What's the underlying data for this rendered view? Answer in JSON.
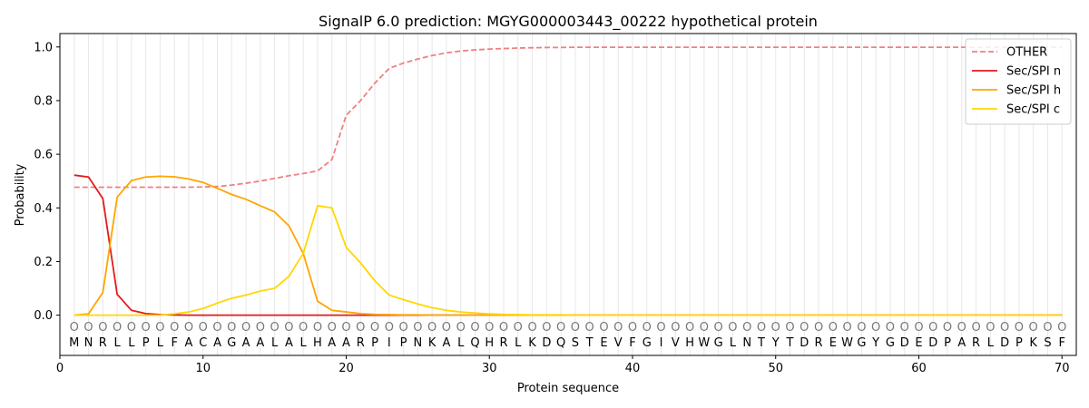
{
  "chart_data": {
    "type": "line",
    "title": "SignalP 6.0 prediction: MGYG000003443_00222 hypothetical protein",
    "xlabel": "Protein sequence",
    "ylabel": "Probability",
    "xlim": [
      0,
      71
    ],
    "ylim": [
      -0.15,
      1.05
    ],
    "x_ticks": [
      0,
      10,
      20,
      30,
      40,
      50,
      60,
      70
    ],
    "y_ticks": [
      "0.0",
      "0.2",
      "0.4",
      "0.6",
      "0.8",
      "1.0"
    ],
    "y_tick_values": [
      0.0,
      0.2,
      0.4,
      0.6,
      0.8,
      1.0
    ],
    "grid": "vertical lines at each residue",
    "legend_position": "top-right",
    "sequence": [
      "M",
      "N",
      "R",
      "L",
      "L",
      "P",
      "L",
      "F",
      "A",
      "C",
      "A",
      "G",
      "A",
      "A",
      "L",
      "A",
      "L",
      "H",
      "A",
      "A",
      "R",
      "P",
      "I",
      "P",
      "N",
      "K",
      "A",
      "L",
      "Q",
      "H",
      "R",
      "L",
      "K",
      "D",
      "Q",
      "S",
      "T",
      "E",
      "V",
      "F",
      "G",
      "I",
      "V",
      "H",
      "W",
      "G",
      "L",
      "N",
      "T",
      "Y",
      "T",
      "D",
      "R",
      "E",
      "W",
      "G",
      "Y",
      "G",
      "D",
      "E",
      "D",
      "P",
      "A",
      "R",
      "L",
      "D",
      "P",
      "K",
      "S",
      "F"
    ],
    "region_marker": "O",
    "series": [
      {
        "name": "OTHER",
        "color": "#f08080",
        "dash": true,
        "values": [
          0.477,
          0.477,
          0.477,
          0.477,
          0.477,
          0.477,
          0.477,
          0.477,
          0.477,
          0.478,
          0.48,
          0.485,
          0.492,
          0.5,
          0.51,
          0.52,
          0.528,
          0.538,
          0.58,
          0.745,
          0.8,
          0.865,
          0.92,
          0.94,
          0.955,
          0.968,
          0.978,
          0.985,
          0.989,
          0.992,
          0.994,
          0.996,
          0.997,
          0.998,
          0.998,
          0.999,
          0.999,
          0.999,
          0.999,
          0.999,
          0.999,
          0.999,
          0.999,
          0.999,
          0.999,
          0.999,
          0.999,
          0.999,
          0.999,
          0.999,
          0.999,
          0.999,
          0.999,
          0.999,
          0.999,
          0.999,
          0.999,
          0.999,
          0.999,
          0.999,
          0.999,
          0.999,
          0.999,
          0.999,
          0.999,
          0.999,
          0.999,
          0.999,
          0.999,
          0.999
        ]
      },
      {
        "name": "Sec/SPI n",
        "color": "#e31a1c",
        "dash": false,
        "values": [
          0.522,
          0.515,
          0.435,
          0.078,
          0.018,
          0.006,
          0.002,
          0.001,
          0.0,
          0.0,
          0.0,
          0.0,
          0.0,
          0.0,
          0.0,
          0.0,
          0.0,
          0.0,
          0.0,
          0.0,
          0.0,
          0.0,
          0.0,
          0.0,
          0.0,
          0.0,
          0.0,
          0.0,
          0.0,
          0.0,
          0.0,
          0.0,
          0.0,
          0.0,
          0.0,
          0.0,
          0.0,
          0.0,
          0.0,
          0.0,
          0.0,
          0.0,
          0.0,
          0.0,
          0.0,
          0.0,
          0.0,
          0.0,
          0.0,
          0.0,
          0.0,
          0.0,
          0.0,
          0.0,
          0.0,
          0.0,
          0.0,
          0.0,
          0.0,
          0.0,
          0.0,
          0.0,
          0.0,
          0.0,
          0.0,
          0.0,
          0.0,
          0.0,
          0.0,
          0.0
        ]
      },
      {
        "name": "Sec/SPI h",
        "color": "#ffa500",
        "dash": false,
        "values": [
          0.0,
          0.005,
          0.085,
          0.44,
          0.502,
          0.515,
          0.518,
          0.516,
          0.508,
          0.495,
          0.473,
          0.45,
          0.432,
          0.408,
          0.385,
          0.333,
          0.23,
          0.052,
          0.018,
          0.012,
          0.006,
          0.003,
          0.002,
          0.001,
          0.001,
          0.0,
          0.0,
          0.0,
          0.0,
          0.0,
          0.0,
          0.0,
          0.0,
          0.0,
          0.0,
          0.0,
          0.0,
          0.0,
          0.0,
          0.0,
          0.0,
          0.0,
          0.0,
          0.0,
          0.0,
          0.0,
          0.0,
          0.0,
          0.0,
          0.0,
          0.0,
          0.0,
          0.0,
          0.0,
          0.0,
          0.0,
          0.0,
          0.0,
          0.0,
          0.0,
          0.0,
          0.0,
          0.0,
          0.0,
          0.0,
          0.0,
          0.0,
          0.0,
          0.0,
          0.0
        ]
      },
      {
        "name": "Sec/SPI c",
        "color": "#ffd700",
        "dash": false,
        "values": [
          0.0,
          0.0,
          0.0,
          0.0,
          0.0,
          0.0,
          0.0,
          0.005,
          0.012,
          0.025,
          0.045,
          0.063,
          0.075,
          0.09,
          0.1,
          0.145,
          0.23,
          0.408,
          0.4,
          0.253,
          0.195,
          0.128,
          0.075,
          0.058,
          0.042,
          0.028,
          0.018,
          0.012,
          0.008,
          0.005,
          0.003,
          0.002,
          0.001,
          0.001,
          0.001,
          0.0,
          0.0,
          0.0,
          0.0,
          0.0,
          0.0,
          0.0,
          0.0,
          0.0,
          0.0,
          0.0,
          0.0,
          0.0,
          0.0,
          0.0,
          0.0,
          0.0,
          0.0,
          0.0,
          0.0,
          0.0,
          0.0,
          0.0,
          0.0,
          0.0,
          0.0,
          0.0,
          0.0,
          0.0,
          0.0,
          0.0,
          0.0,
          0.0,
          0.0,
          0.0
        ]
      }
    ]
  }
}
